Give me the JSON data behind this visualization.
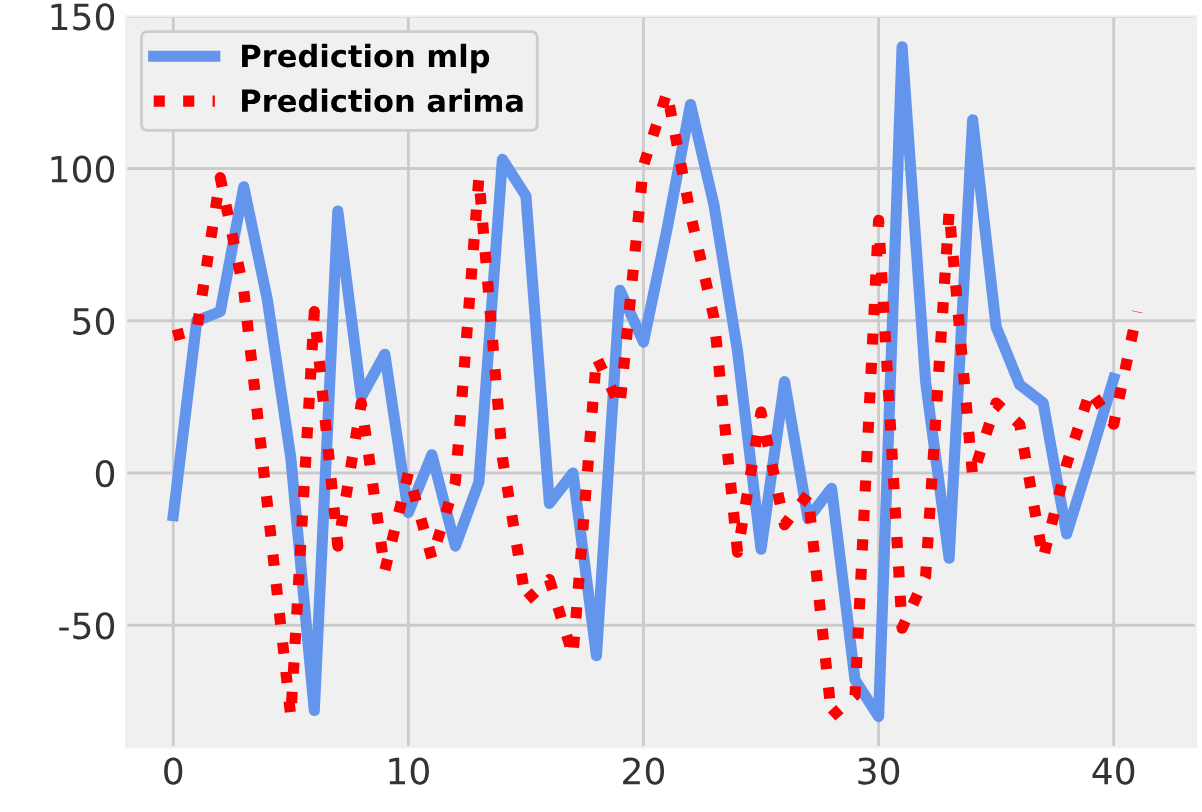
{
  "chart_data": {
    "type": "line",
    "xlim": [
      -2,
      43.5
    ],
    "ylim": [
      -90,
      150
    ],
    "xticks": [
      0,
      10,
      20,
      30,
      40
    ],
    "yticks": [
      -50,
      0,
      50,
      100,
      150
    ],
    "grid": true,
    "legend": "top left",
    "series": [
      {
        "name": "Prediction mlp",
        "color": "#6495ed",
        "line_style": "solid",
        "x": [
          0,
          1,
          2,
          3,
          4,
          5,
          6,
          7,
          8,
          9,
          10,
          11,
          12,
          13,
          14,
          15,
          16,
          17,
          18,
          19,
          20,
          21,
          22,
          23,
          24,
          25,
          26,
          27,
          28,
          29,
          30,
          31,
          32,
          33,
          34,
          35,
          36,
          37,
          38,
          39,
          40
        ],
        "values": [
          -14,
          50,
          53,
          94,
          57,
          5,
          -78,
          86,
          25,
          39,
          -13,
          6,
          -24,
          -3,
          103,
          91,
          -10,
          0,
          -60,
          60,
          43,
          80,
          121,
          88,
          40,
          -25,
          30,
          -15,
          -5,
          -68,
          -80,
          140,
          30,
          -28,
          116,
          48,
          29,
          23,
          -20,
          5,
          31
        ]
      },
      {
        "name": "Prediction arima",
        "color": "#ff0000",
        "line_style": "dotted",
        "x": [
          0,
          1,
          2,
          3,
          4,
          5,
          6,
          7,
          8,
          9,
          10,
          11,
          12,
          13,
          14,
          15,
          16,
          17,
          18,
          19,
          20,
          21,
          22,
          23,
          24,
          25,
          26,
          27,
          28,
          29,
          30,
          31,
          32,
          33,
          34,
          35,
          36,
          37,
          38,
          39,
          40,
          41
        ],
        "values": [
          45,
          47,
          97,
          60,
          -10,
          -80,
          53,
          -24,
          23,
          -32,
          0,
          -28,
          -3,
          97,
          5,
          -42,
          -35,
          -60,
          38,
          22,
          101,
          125,
          85,
          51,
          -26,
          20,
          -17,
          -7,
          -80,
          -73,
          83,
          -51,
          -34,
          86,
          -1,
          23,
          16,
          -28,
          3,
          27,
          16,
          53
        ]
      }
    ]
  }
}
